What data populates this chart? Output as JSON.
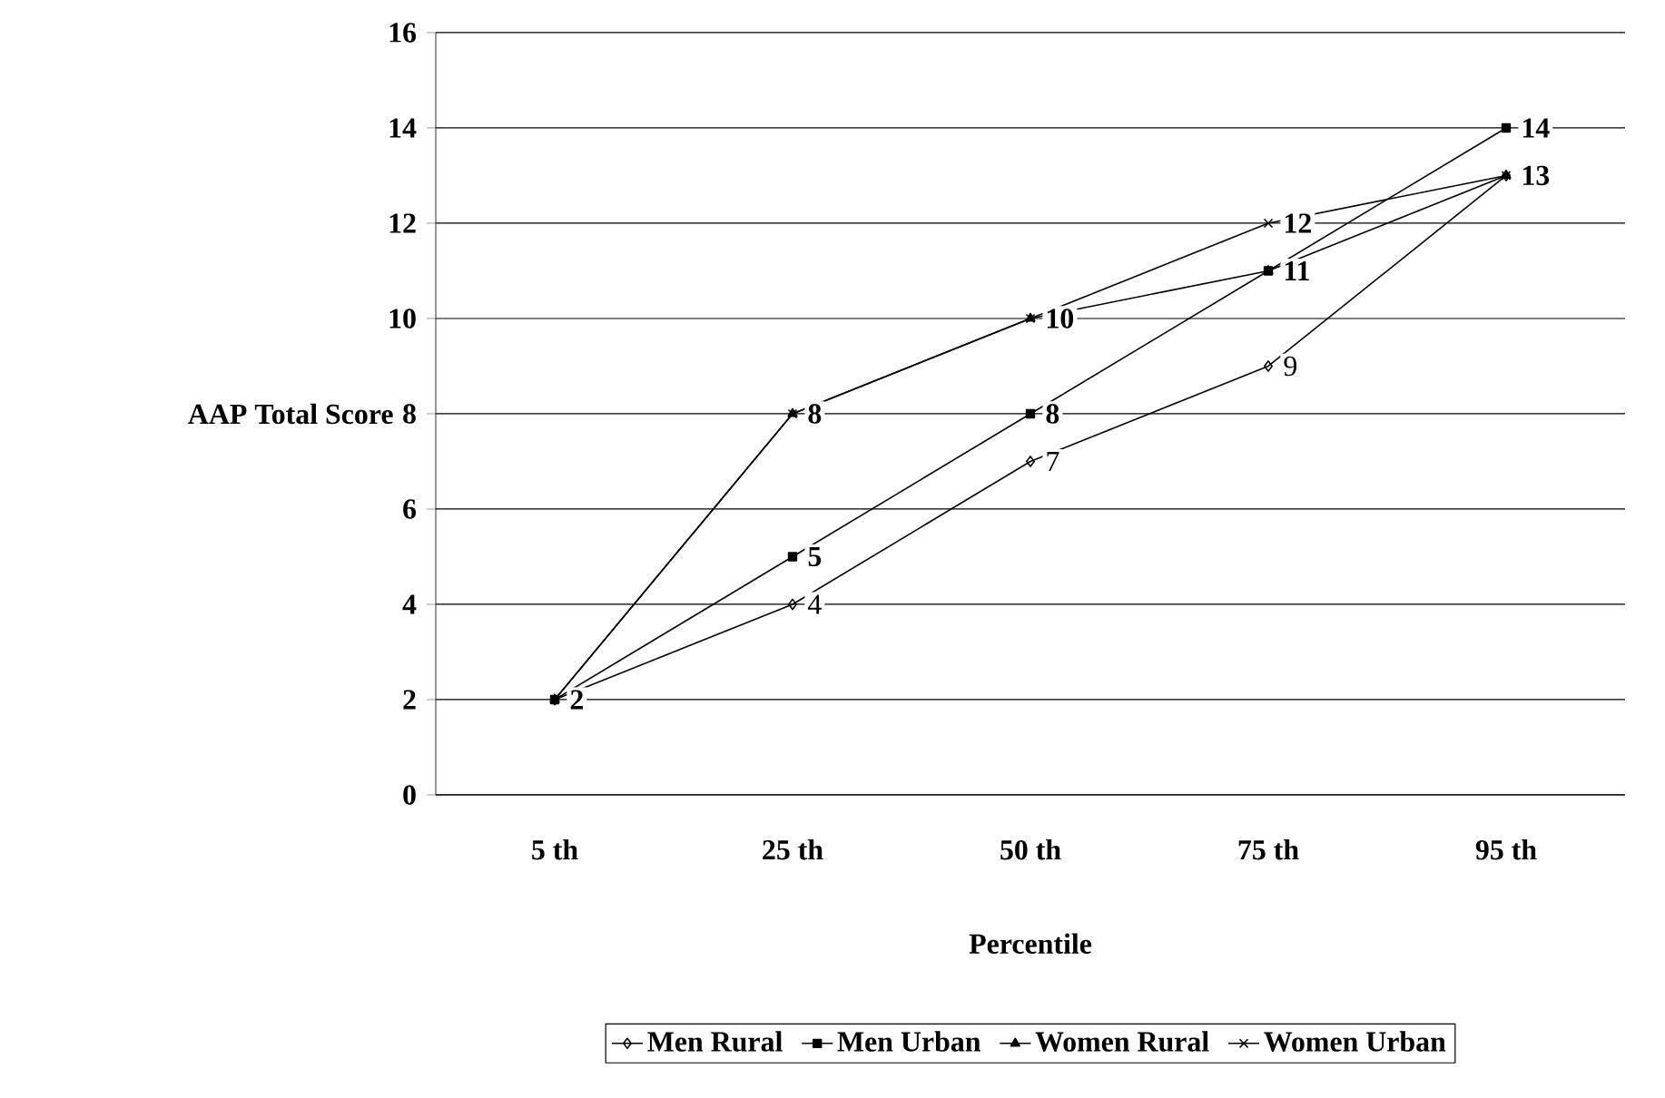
{
  "chart_data": {
    "type": "line",
    "xlabel": "Percentile",
    "ylabel": "AAP Total Score",
    "categories": [
      "5 th",
      "25 th",
      "50 th",
      "75 th",
      "95 th"
    ],
    "series": [
      {
        "name": "Men Rural",
        "color": "#000000",
        "marker": "diamond",
        "values": [
          2,
          4,
          7,
          9,
          13
        ],
        "value_labels": [
          null,
          "4",
          "7",
          "9",
          null
        ]
      },
      {
        "name": "Men Urban",
        "color": "#000000",
        "marker": "square",
        "values": [
          2,
          5,
          8,
          11,
          14
        ],
        "value_labels": [
          "2",
          "5",
          "8",
          "11",
          "14"
        ]
      },
      {
        "name": "Women Rural",
        "color": "#000000",
        "marker": "triangle",
        "values": [
          2,
          8,
          10,
          11,
          13
        ],
        "value_labels": [
          null,
          "8",
          null,
          null,
          "13"
        ]
      },
      {
        "name": "Women Urban",
        "color": "#000000",
        "marker": "cross",
        "values": [
          2,
          8,
          10,
          12,
          13
        ],
        "value_labels": [
          null,
          null,
          "10",
          "12",
          null
        ]
      }
    ],
    "ylim": [
      0,
      16
    ],
    "yticks": [
      0,
      2,
      4,
      6,
      8,
      10,
      12,
      14,
      16
    ],
    "grid": "y",
    "legend": "bottom",
    "line_style": "solid"
  }
}
